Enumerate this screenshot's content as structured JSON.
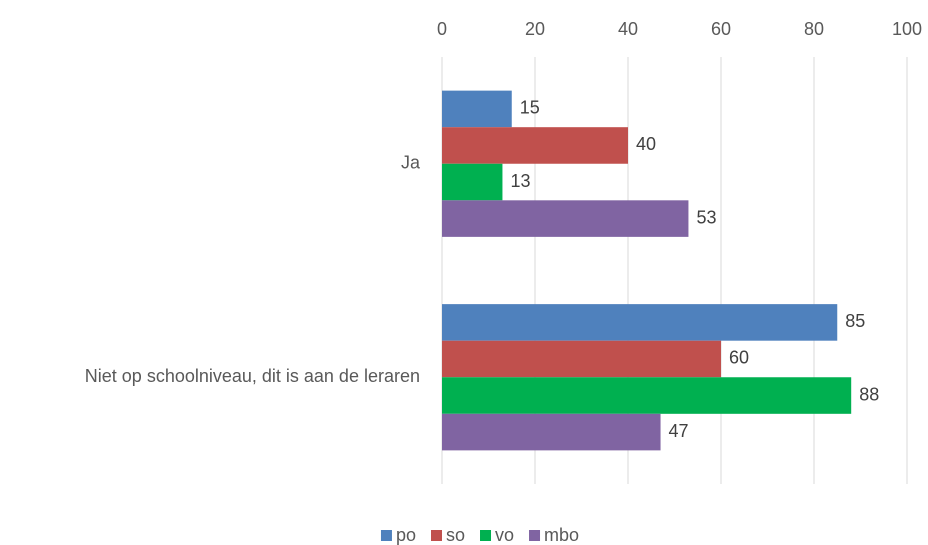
{
  "chart_data": {
    "type": "hbar",
    "categories": [
      "Ja",
      "Niet op schoolniveau, dit is aan de leraren"
    ],
    "series": [
      {
        "name": "po",
        "color": "#4f81bd",
        "values": [
          15,
          85
        ]
      },
      {
        "name": "so",
        "color": "#c0504d",
        "values": [
          40,
          60
        ]
      },
      {
        "name": "vo",
        "color": "#00b050",
        "values": [
          13,
          88
        ]
      },
      {
        "name": "mbo",
        "color": "#8064a2",
        "values": [
          53,
          47
        ]
      }
    ],
    "xlim": [
      0,
      100
    ],
    "xticks": [
      0,
      20,
      40,
      60,
      80,
      100
    ],
    "grid": true,
    "legend": "bottom"
  }
}
